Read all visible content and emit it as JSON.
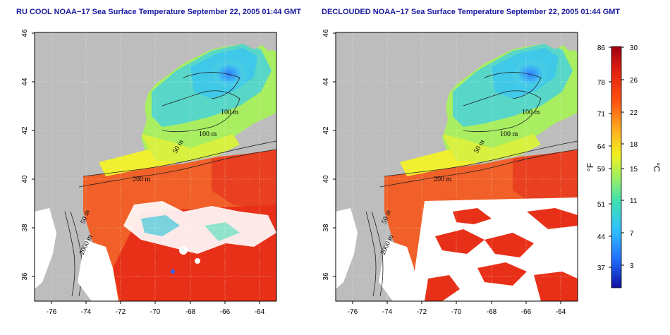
{
  "panels": [
    {
      "title": "RU COOL NOAA−17 Sea Surface Temperature September 22, 2005 01:44 GMT",
      "contour_labels": [
        "100 m",
        "100 m",
        "50 m",
        "200 m",
        "50 m",
        "2000 m"
      ]
    },
    {
      "title": "DECLOUDED NOAA−17 Sea Surface Temperature September 22, 2005 01:44 GMT",
      "contour_labels": [
        "100 m",
        "100 m",
        "50 m",
        "200 m",
        "50 m",
        "2000 m"
      ]
    }
  ],
  "axes": {
    "longitude_ticks": [
      "-76",
      "-74",
      "-72",
      "-70",
      "-68",
      "-66",
      "-64"
    ],
    "latitude_ticks": [
      "46",
      "44",
      "42",
      "40",
      "38",
      "36"
    ]
  },
  "colorbar": {
    "fahrenheit_label": "°F",
    "celsius_label": "°C",
    "fahrenheit_ticks": [
      "86",
      "78",
      "71",
      "64",
      "59",
      "51",
      "44",
      "37"
    ],
    "celsius_ticks": [
      "30",
      "26",
      "22",
      "18",
      "15",
      "11",
      "7",
      "3"
    ],
    "colors": [
      "#1010a0",
      "#2070ff",
      "#30c0ff",
      "#40e0b0",
      "#a0f060",
      "#f0f020",
      "#ffb020",
      "#ff5010",
      "#e02010",
      "#a00010"
    ]
  },
  "map_colors": {
    "land": "#bdbdbd",
    "cloud": "#ffffff",
    "cold_water": "#60d0e0",
    "cool_water": "#c0f050",
    "warm_water": "#f06020",
    "hot_water": "#e83018"
  }
}
